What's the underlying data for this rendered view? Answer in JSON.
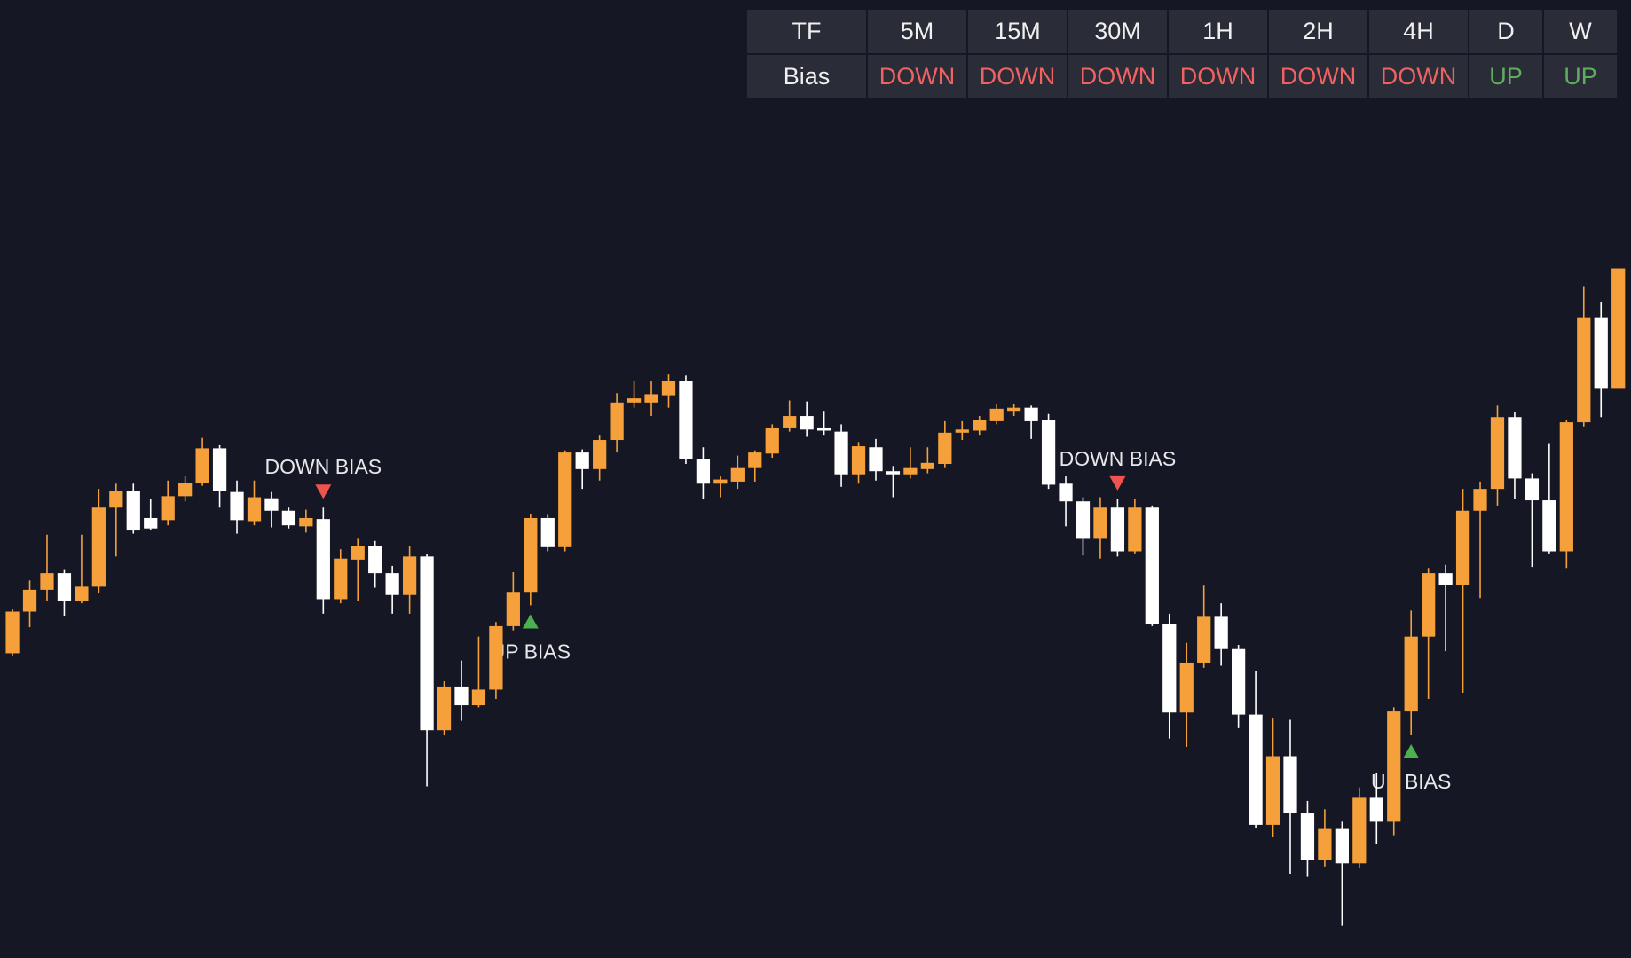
{
  "chart_data": {
    "type": "candlestick",
    "up_color": "#f5a03a",
    "down_color": "#ffffff",
    "ylim": [
      0,
      921
    ],
    "open": [
      293,
      333,
      354,
      370,
      343,
      357,
      433,
      449,
      423,
      421,
      444,
      457,
      490,
      448,
      420,
      442,
      430,
      415,
      422,
      345,
      383,
      396,
      370,
      349,
      386,
      219,
      261,
      243,
      258,
      319,
      352,
      423,
      395,
      486,
      470,
      498,
      534,
      534,
      541,
      555,
      480,
      456,
      458,
      471,
      485,
      510,
      521,
      510,
      506,
      465,
      491,
      468,
      465,
      470,
      475,
      505,
      507,
      516,
      526,
      529,
      517,
      456,
      439,
      403,
      433,
      391,
      433,
      321,
      236,
      284,
      328,
      297,
      234,
      128,
      194,
      139,
      94,
      124,
      91,
      154,
      131,
      237,
      309,
      370,
      359,
      430,
      451,
      520,
      461,
      440,
      391,
      515,
      616,
      548
    ],
    "high": [
      336,
      363,
      407,
      373,
      407,
      451,
      456,
      456,
      441,
      459,
      463,
      500,
      493,
      459,
      459,
      448,
      433,
      431,
      433,
      393,
      403,
      401,
      377,
      396,
      388,
      266,
      286,
      309,
      323,
      371,
      427,
      426,
      488,
      489,
      503,
      543,
      555,
      555,
      561,
      560,
      491,
      463,
      483,
      488,
      513,
      536,
      535,
      526,
      513,
      496,
      499,
      473,
      491,
      491,
      516,
      516,
      521,
      533,
      533,
      531,
      523,
      463,
      443,
      443,
      441,
      441,
      435,
      331,
      303,
      358,
      341,
      301,
      276,
      231,
      229,
      151,
      143,
      131,
      164,
      178,
      241,
      334,
      375,
      378,
      451,
      458,
      531,
      525,
      466,
      495,
      517,
      646,
      631,
      663
    ],
    "low": [
      291,
      318,
      343,
      329,
      341,
      351,
      386,
      408,
      411,
      416,
      439,
      454,
      433,
      408,
      416,
      414,
      413,
      409,
      331,
      341,
      343,
      356,
      331,
      331,
      165,
      214,
      228,
      241,
      249,
      315,
      339,
      391,
      391,
      451,
      459,
      486,
      529,
      521,
      529,
      475,
      441,
      443,
      451,
      458,
      481,
      506,
      501,
      503,
      453,
      456,
      459,
      443,
      461,
      466,
      471,
      498,
      503,
      513,
      521,
      499,
      451,
      415,
      387,
      384,
      386,
      389,
      319,
      211,
      203,
      279,
      281,
      221,
      125,
      116,
      81,
      78,
      88,
      31,
      86,
      110,
      118,
      214,
      249,
      295,
      255,
      346,
      435,
      441,
      376,
      389,
      375,
      511,
      520,
      548
    ],
    "close": [
      333,
      354,
      370,
      343,
      357,
      433,
      449,
      411,
      413,
      444,
      457,
      490,
      449,
      421,
      443,
      430,
      416,
      423,
      345,
      384,
      396,
      370,
      349,
      386,
      219,
      261,
      243,
      258,
      319,
      352,
      423,
      395,
      486,
      470,
      498,
      534,
      538,
      542,
      555,
      480,
      456,
      460,
      471,
      486,
      510,
      521,
      508,
      507,
      465,
      492,
      468,
      465,
      471,
      476,
      505,
      508,
      517,
      528,
      529,
      516,
      455,
      439,
      403,
      433,
      391,
      433,
      321,
      236,
      284,
      328,
      297,
      234,
      128,
      194,
      139,
      94,
      124,
      91,
      154,
      131,
      237,
      309,
      370,
      359,
      430,
      451,
      520,
      461,
      440,
      391,
      515,
      616,
      548,
      663
    ],
    "signals": [
      {
        "text": "DOWN BIAS",
        "at": 18,
        "direction": "down",
        "color": "#ef5350"
      },
      {
        "text": "UP BIAS",
        "at": 30,
        "direction": "up",
        "color": "#4caf50"
      },
      {
        "text": "DOWN BIAS",
        "at": 64,
        "direction": "down",
        "color": "#ef5350"
      },
      {
        "text": "UP BIAS",
        "at": 81,
        "direction": "up",
        "color": "#4caf50"
      }
    ]
  },
  "table": {
    "header": [
      "TF",
      "5M",
      "15M",
      "30M",
      "1H",
      "2H",
      "4H",
      "D",
      "W"
    ],
    "rows": [
      [
        "Bias",
        "DOWN",
        "DOWN",
        "DOWN",
        "DOWN",
        "DOWN",
        "DOWN",
        "UP",
        "UP"
      ]
    ],
    "row_colors": [
      [
        "#f0f0f0",
        "#f06262",
        "#f06262",
        "#f06262",
        "#f06262",
        "#f06262",
        "#f06262",
        "#5fae5f",
        "#5fae5f"
      ]
    ]
  }
}
